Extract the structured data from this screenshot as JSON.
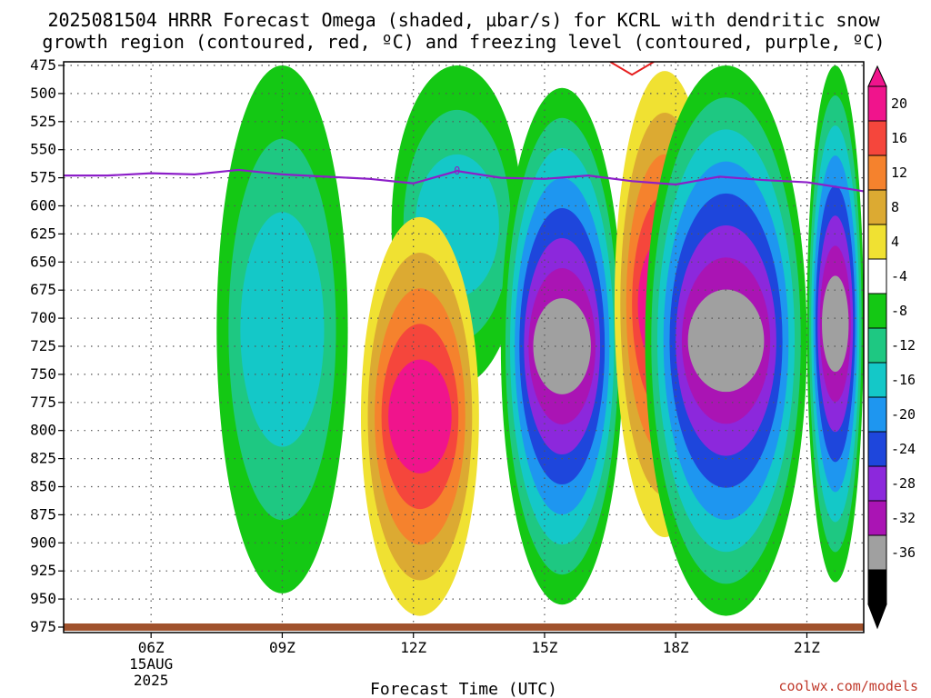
{
  "title": {
    "line1": "2025081504 HRRR Forecast Omega (shaded, µbar/s) for KCRL with dendritic snow",
    "line2": "growth region (contoured, red, ºC) and freezing level (contoured, purple, ºC)"
  },
  "credit": "coolwx.com/models",
  "chart_data": {
    "type": "heatmap",
    "title": "2025081504 HRRR Forecast Omega (shaded, µbar/s) for KCRL with dendritic snow growth region (contoured, red, ºC) and freezing level (contoured, purple, ºC)",
    "xlabel": "Forecast Time (UTC)",
    "ylabel": "",
    "x_hours": [
      4,
      22.3
    ],
    "y_levels_hpa": [
      475,
      500,
      525,
      550,
      575,
      600,
      625,
      650,
      675,
      700,
      725,
      750,
      775,
      800,
      825,
      850,
      875,
      900,
      925,
      950,
      975
    ],
    "x_ticks": [
      {
        "hour": 6,
        "label": "06Z",
        "date1": "15AUG",
        "date2": "2025"
      },
      {
        "hour": 9,
        "label": "09Z"
      },
      {
        "hour": 12,
        "label": "12Z"
      },
      {
        "hour": 15,
        "label": "15Z"
      },
      {
        "hour": 18,
        "label": "18Z"
      },
      {
        "hour": 21,
        "label": "21Z"
      }
    ],
    "colorbar": {
      "labels": [
        "20",
        "16",
        "12",
        "8",
        "4",
        "-4",
        "-8",
        "-12",
        "-16",
        "-20",
        "-24",
        "-28",
        "-32",
        "-36"
      ],
      "colors": [
        "#f0148c",
        "#f5463c",
        "#f5822d",
        "#dcaa32",
        "#f0e132",
        "#ffffff",
        "#14c814",
        "#1ec882",
        "#14c8c8",
        "#1e96f0",
        "#1e46dc",
        "#8c28dc",
        "#aa14b4",
        "#a0a0a0",
        "#000000"
      ]
    },
    "freezing_level": {
      "label": "0",
      "points": [
        {
          "hour": 4.0,
          "p": 573
        },
        {
          "hour": 5.0,
          "p": 573
        },
        {
          "hour": 6.0,
          "p": 571
        },
        {
          "hour": 7.0,
          "p": 572
        },
        {
          "hour": 8.0,
          "p": 568
        },
        {
          "hour": 9.0,
          "p": 572
        },
        {
          "hour": 10.0,
          "p": 574
        },
        {
          "hour": 11.0,
          "p": 576
        },
        {
          "hour": 12.0,
          "p": 580
        },
        {
          "hour": 13.0,
          "p": 569
        },
        {
          "hour": 14.0,
          "p": 575
        },
        {
          "hour": 15.0,
          "p": 576
        },
        {
          "hour": 16.0,
          "p": 573
        },
        {
          "hour": 17.0,
          "p": 578
        },
        {
          "hour": 18.0,
          "p": 581
        },
        {
          "hour": 19.0,
          "p": 574
        },
        {
          "hour": 20.0,
          "p": 577
        },
        {
          "hour": 21.0,
          "p": 579
        },
        {
          "hour": 22.3,
          "p": 587
        }
      ]
    },
    "features": [
      {
        "kind": "descending",
        "hour_start": 7.5,
        "hour_end": 10.5,
        "p_top": 475,
        "p_bottom": 945,
        "min_omega": -16
      },
      {
        "kind": "descending",
        "hour_start": 11.5,
        "hour_end": 14.5,
        "p_top": 475,
        "p_bottom": 760,
        "min_omega": -16
      },
      {
        "kind": "ascending",
        "hour_start": 10.8,
        "hour_end": 13.5,
        "p_top": 610,
        "p_bottom": 965,
        "max_omega": 20
      },
      {
        "kind": "descending",
        "hour_start": 14.0,
        "hour_end": 16.8,
        "p_top": 495,
        "p_bottom": 955,
        "min_omega": -36
      },
      {
        "kind": "ascending",
        "hour_start": 16.6,
        "hour_end": 18.9,
        "p_top": 480,
        "p_bottom": 895,
        "max_omega": 20
      },
      {
        "kind": "descending",
        "hour_start": 17.3,
        "hour_end": 21.0,
        "p_top": 475,
        "p_bottom": 965,
        "min_omega": -36
      },
      {
        "kind": "descending",
        "hour_start": 21.0,
        "hour_end": 22.3,
        "p_top": 475,
        "p_bottom": 935,
        "min_omega": -36
      }
    ],
    "dendritic_growth_region": [
      {
        "hour_start": 16.5,
        "hour_end": 17.5,
        "p": 480
      }
    ]
  }
}
